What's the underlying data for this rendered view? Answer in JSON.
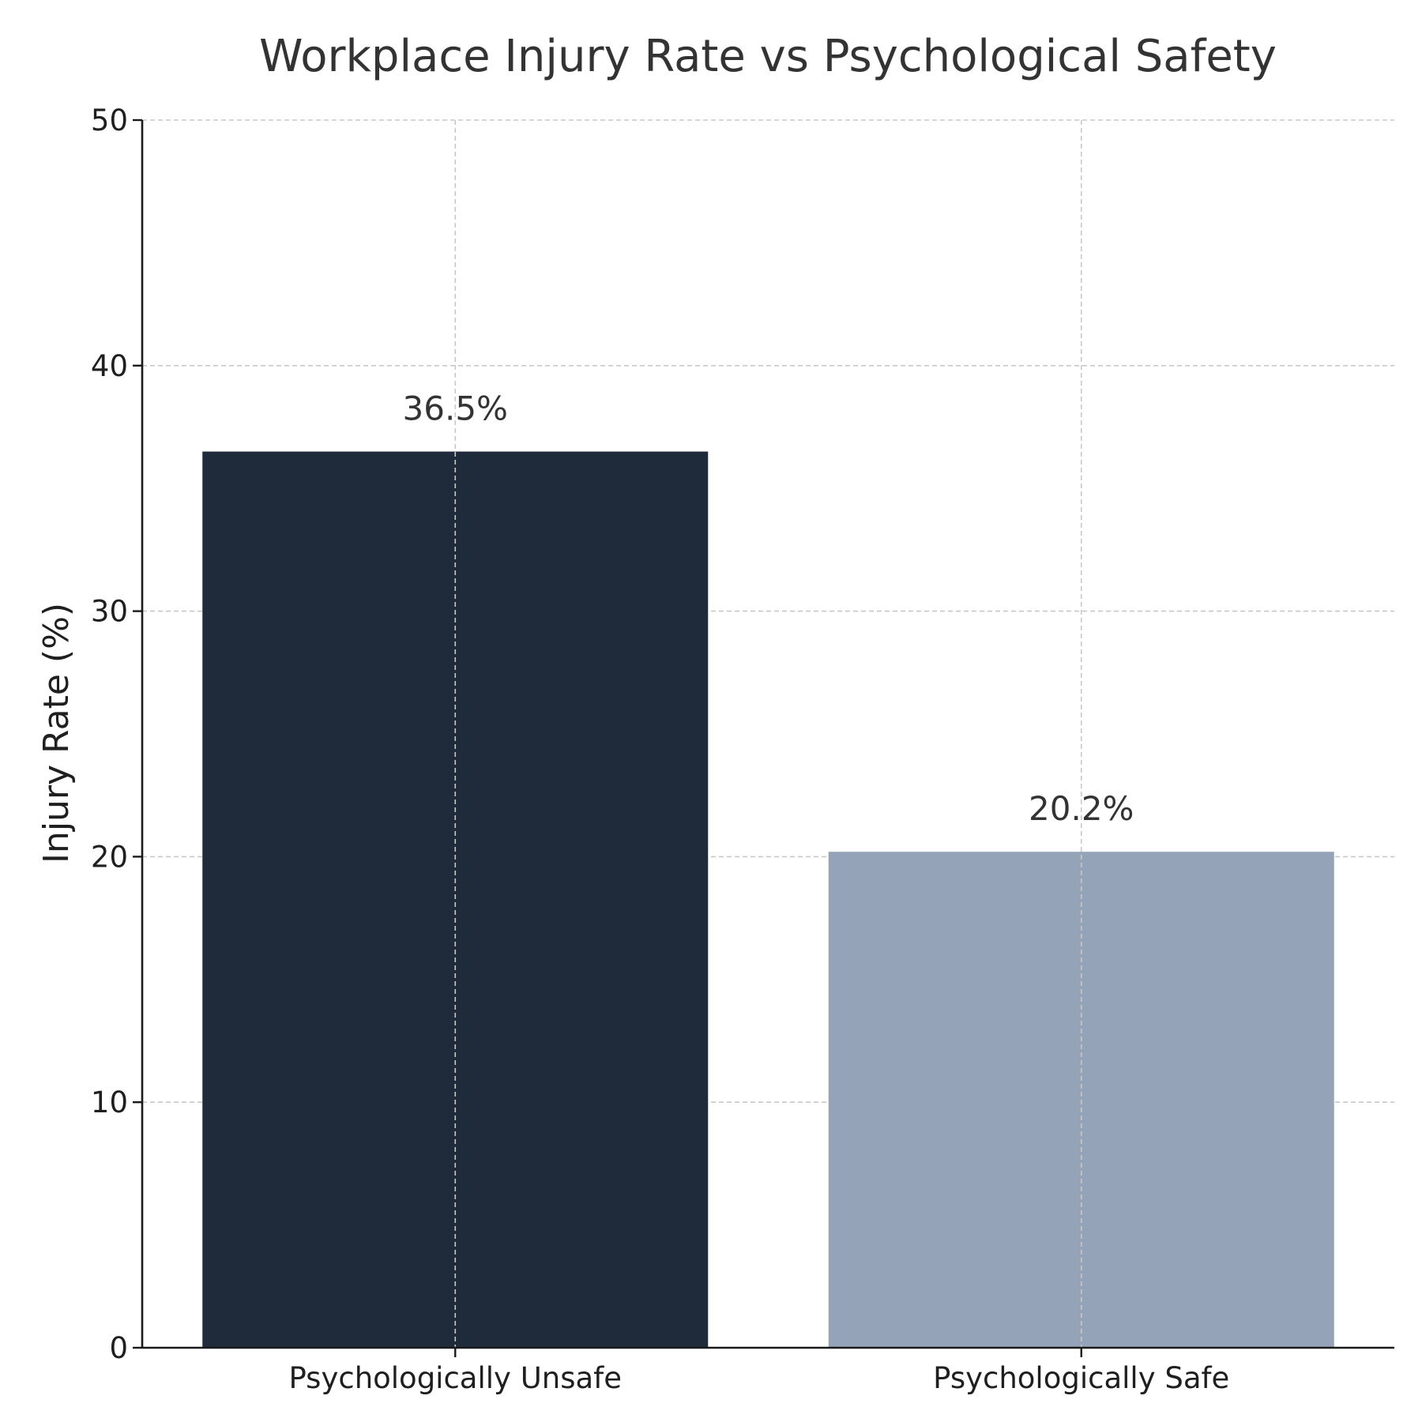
{
  "chart_data": {
    "type": "bar",
    "title": "Workplace Injury Rate vs Psychological Safety",
    "xlabel": "",
    "ylabel": "Injury Rate (%)",
    "categories": [
      "Psychologically Unsafe",
      "Psychologically Safe"
    ],
    "values": [
      36.5,
      20.2
    ],
    "data_labels": [
      "36.5%",
      "20.2%"
    ],
    "bar_colors": [
      "#1f2a3b",
      "#94a3b8"
    ],
    "ylim": [
      0,
      50
    ],
    "yticks": [
      0,
      10,
      20,
      30,
      40,
      50
    ],
    "grid": true,
    "legend": "none"
  }
}
